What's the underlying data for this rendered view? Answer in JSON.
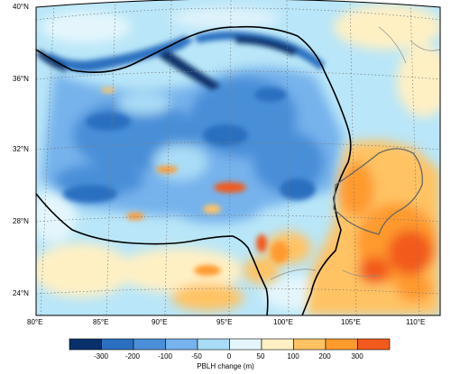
{
  "map": {
    "x_ticks": [
      "80°E",
      "85°E",
      "90°E",
      "95°E",
      "100°E",
      "105°E",
      "110°E"
    ],
    "y_ticks": [
      "40°N",
      "36°N",
      "32°N",
      "28°N",
      "24°N"
    ],
    "lon_range": [
      80,
      110
    ],
    "lat_range": [
      23,
      40
    ],
    "graticule": "dotted",
    "features": [
      "Tibetan Plateau boundary",
      "Sichuan Basin boundary"
    ]
  },
  "colorbar": {
    "title": "PBLH change (m)",
    "labels": [
      "-300",
      "-200",
      "-100",
      "-50",
      "0",
      "50",
      "100",
      "200",
      "300"
    ],
    "colors": [
      "#08306b",
      "#2b6fc0",
      "#4a8fd8",
      "#76b2ec",
      "#a9dcf6",
      "#e4f6fc",
      "#fff0c4",
      "#ffc364",
      "#ff9a2e",
      "#f25a1c"
    ]
  }
}
